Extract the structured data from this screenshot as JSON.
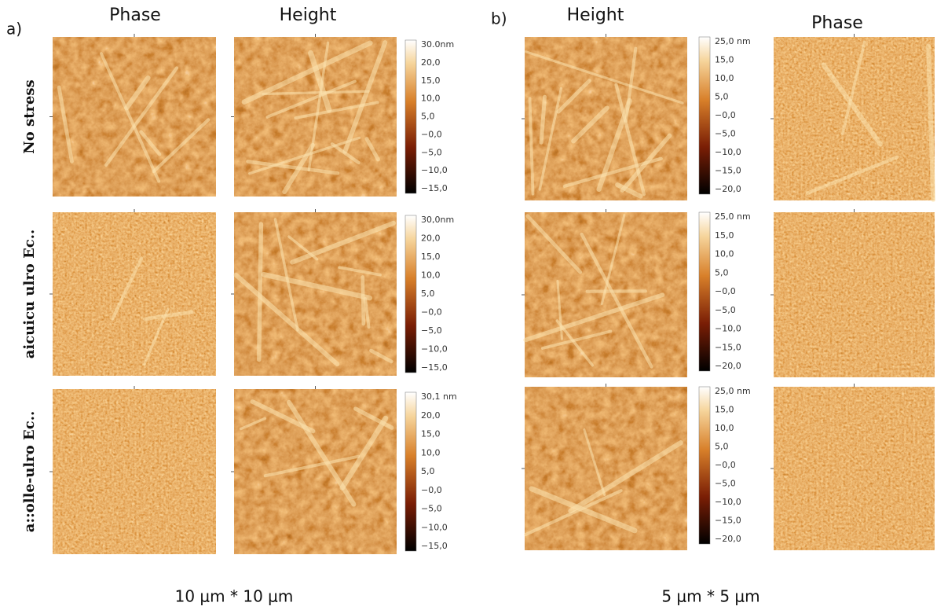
{
  "panel_a": {
    "label": "a)",
    "columns": [
      "Phase",
      "Height"
    ],
    "rows": [
      "No stress",
      "aicuicu ulro Ec..",
      "a::olle-ulro Ec.."
    ],
    "colorbars": [
      [
        "30.0nm",
        "20,0",
        "15,0",
        "10,0",
        "5,0",
        "−0,0",
        "−5,0",
        "−10,0",
        "−15,0"
      ],
      [
        "30,0nm",
        "20,0",
        "15,0",
        "10,0",
        "5,0",
        "−0,0",
        "−5,0",
        "−10,0",
        "−15,0"
      ],
      [
        "30,1 nm",
        "20,0",
        "15,0",
        "10,0",
        "5,0",
        "−0,0",
        "−5,0",
        "−10,0",
        "−15,0"
      ]
    ],
    "scale": "10 μm * 10  μm"
  },
  "panel_b": {
    "label": "b)",
    "columns": [
      "Height",
      "Phase"
    ],
    "colorbars": [
      [
        "25,0 nm",
        "15,0",
        "10,0",
        "5,0",
        "−0,0",
        "−5,0",
        "−10,0",
        "−15,0",
        "−20,0"
      ],
      [
        "25,0 nm",
        "15,0",
        "10,0",
        "5,0",
        "−0,0",
        "−5,0",
        "−10,0",
        "−15,0",
        "−20,0"
      ],
      [
        "25,0 nm",
        "15,0",
        "10,0",
        "5,0",
        "−0,0",
        "−5,0",
        "−10,0",
        "−15,0",
        "−20,0"
      ]
    ],
    "scale": "5 μm * 5  μm"
  }
}
